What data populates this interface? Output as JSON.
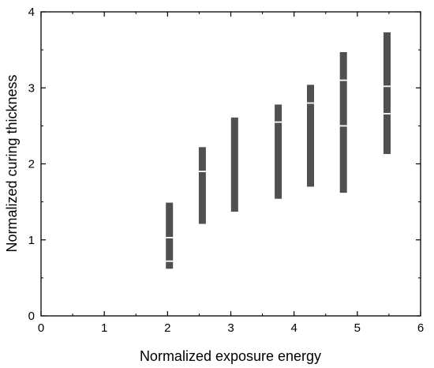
{
  "chart_data": {
    "type": "bar",
    "title": "",
    "xlabel": "Normalized exposure energy",
    "ylabel": "Normalized curing thickness",
    "xlim": [
      0,
      6
    ],
    "ylim": [
      0,
      4
    ],
    "xticks": [
      "0",
      "1",
      "2",
      "3",
      "4",
      "5",
      "6"
    ],
    "yticks": [
      "0",
      "1",
      "2",
      "3",
      "4"
    ],
    "grid": false,
    "legend": "none",
    "bar_color": "#505050",
    "marker_color": "#ffffff",
    "ranges": [
      {
        "x": 2.03,
        "low": 0.62,
        "high": 1.49,
        "marks": [
          0.72,
          1.03
        ]
      },
      {
        "x": 2.55,
        "low": 1.21,
        "high": 2.22,
        "marks": [
          1.9
        ]
      },
      {
        "x": 3.06,
        "low": 1.37,
        "high": 2.61,
        "marks": []
      },
      {
        "x": 3.75,
        "low": 1.54,
        "high": 2.78,
        "marks": [
          2.55
        ]
      },
      {
        "x": 4.26,
        "low": 1.7,
        "high": 3.04,
        "marks": [
          2.8
        ]
      },
      {
        "x": 4.78,
        "low": 1.62,
        "high": 3.47,
        "marks": [
          2.5,
          3.1
        ]
      },
      {
        "x": 5.47,
        "low": 2.13,
        "high": 3.73,
        "marks": [
          2.66,
          3.02
        ]
      }
    ]
  }
}
